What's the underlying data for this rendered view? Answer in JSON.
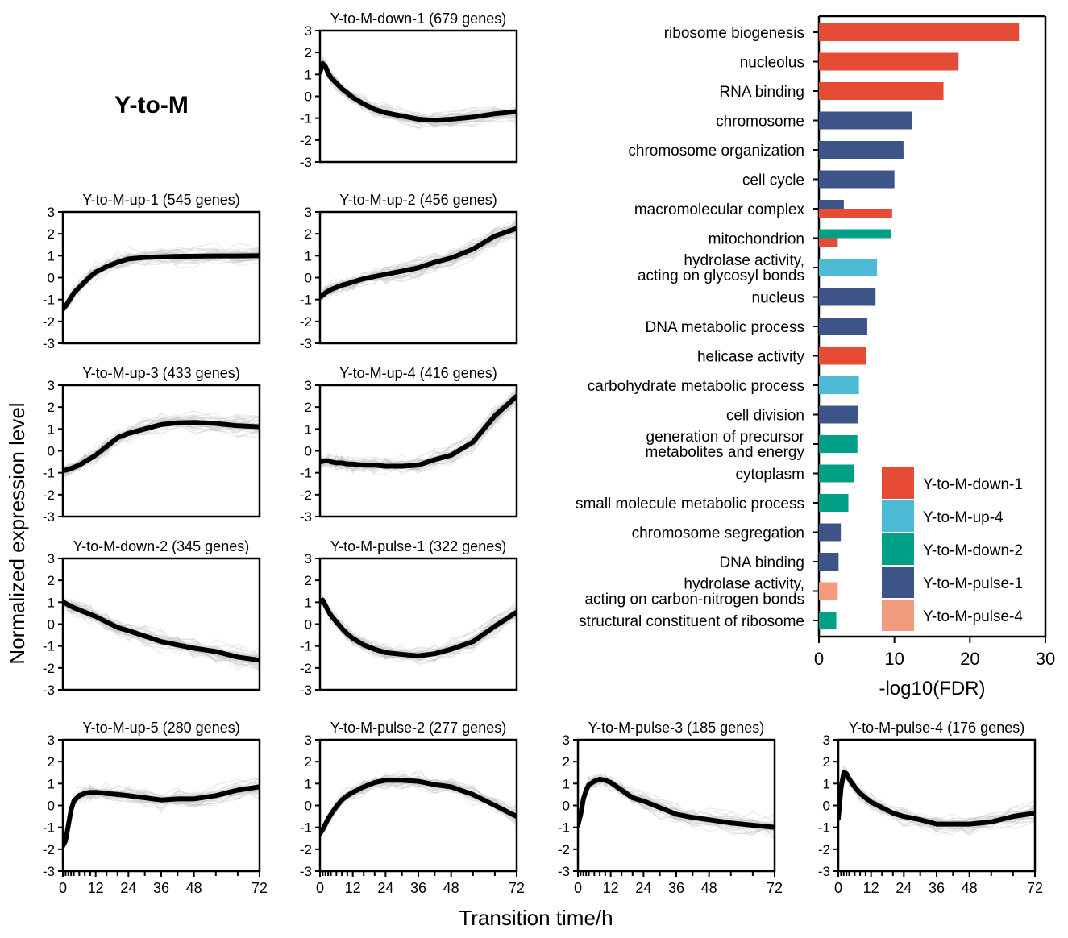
{
  "figure_title": "Y-to-M",
  "shared_axes": {
    "ylabel": "Normalized expression level",
    "xlabel": "Transition time/h",
    "y_ticks": [
      "3",
      "2",
      "1",
      "0",
      "-1",
      "-2",
      "-3"
    ],
    "x_ticks": [
      "0",
      "12",
      "24",
      "36",
      "48",
      "72"
    ]
  },
  "colors": {
    "Y-to-M-down-1": "#E64B35",
    "Y-to-M-up-4": "#4DBBD5",
    "Y-to-M-down-2": "#00A087",
    "Y-to-M-pulse-1": "#3C5488",
    "Y-to-M-pulse-4": "#F39B7F",
    "mean_line": "#000000",
    "gene_lines": "#c4c4c4"
  },
  "chart_data": [
    {
      "type": "line",
      "title": "Y-to-M-down-1 (679 genes)",
      "cluster": "Y-to-M-down-1",
      "genes": 679,
      "ylim": [
        -3,
        3
      ],
      "xlim": [
        0,
        72
      ],
      "x": [
        0,
        1,
        2,
        3,
        4,
        6,
        8,
        10,
        12,
        16,
        20,
        24,
        30,
        36,
        42,
        48,
        56,
        64,
        72
      ],
      "series": [
        {
          "name": "mean",
          "values": [
            1.1,
            1.5,
            1.35,
            1.05,
            0.85,
            0.6,
            0.35,
            0.15,
            -0.05,
            -0.35,
            -0.6,
            -0.75,
            -0.9,
            -1.05,
            -1.1,
            -1.05,
            -0.95,
            -0.8,
            -0.7
          ]
        }
      ]
    },
    {
      "type": "line",
      "title": "Y-to-M-up-1 (545 genes)",
      "cluster": "Y-to-M-up-1",
      "genes": 545,
      "ylim": [
        -3,
        3
      ],
      "xlim": [
        0,
        72
      ],
      "x": [
        0,
        1,
        2,
        3,
        4,
        6,
        8,
        10,
        12,
        16,
        20,
        24,
        30,
        36,
        42,
        48,
        56,
        64,
        72
      ],
      "series": [
        {
          "name": "mean",
          "values": [
            -1.45,
            -1.3,
            -1.1,
            -0.9,
            -0.7,
            -0.45,
            -0.2,
            0.05,
            0.25,
            0.5,
            0.7,
            0.85,
            0.92,
            0.95,
            0.97,
            0.98,
            0.99,
            0.99,
            1.0
          ]
        }
      ]
    },
    {
      "type": "line",
      "title": "Y-to-M-up-2 (456 genes)",
      "cluster": "Y-to-M-up-2",
      "genes": 456,
      "ylim": [
        -3,
        3
      ],
      "xlim": [
        0,
        72
      ],
      "x": [
        0,
        1,
        2,
        3,
        4,
        6,
        8,
        10,
        12,
        16,
        20,
        24,
        30,
        36,
        42,
        48,
        56,
        64,
        72
      ],
      "series": [
        {
          "name": "mean",
          "values": [
            -0.9,
            -0.8,
            -0.7,
            -0.62,
            -0.55,
            -0.45,
            -0.35,
            -0.28,
            -0.2,
            -0.05,
            0.05,
            0.15,
            0.3,
            0.45,
            0.7,
            0.9,
            1.3,
            1.9,
            2.25
          ]
        }
      ]
    },
    {
      "type": "line",
      "title": "Y-to-M-up-3 (433 genes)",
      "cluster": "Y-to-M-up-3",
      "genes": 433,
      "ylim": [
        -3,
        3
      ],
      "xlim": [
        0,
        72
      ],
      "x": [
        0,
        1,
        2,
        3,
        4,
        6,
        8,
        10,
        12,
        16,
        20,
        24,
        30,
        36,
        42,
        48,
        56,
        64,
        72
      ],
      "series": [
        {
          "name": "mean",
          "values": [
            -0.9,
            -0.88,
            -0.85,
            -0.8,
            -0.75,
            -0.65,
            -0.5,
            -0.35,
            -0.2,
            0.2,
            0.6,
            0.8,
            1.0,
            1.2,
            1.28,
            1.3,
            1.25,
            1.15,
            1.1
          ]
        }
      ]
    },
    {
      "type": "line",
      "title": "Y-to-M-up-4 (416 genes)",
      "cluster": "Y-to-M-up-4",
      "genes": 416,
      "ylim": [
        -3,
        3
      ],
      "xlim": [
        0,
        72
      ],
      "x": [
        0,
        1,
        2,
        3,
        4,
        6,
        8,
        10,
        12,
        16,
        20,
        24,
        30,
        36,
        42,
        48,
        56,
        64,
        72
      ],
      "series": [
        {
          "name": "mean",
          "values": [
            -0.5,
            -0.48,
            -0.45,
            -0.45,
            -0.5,
            -0.55,
            -0.55,
            -0.6,
            -0.6,
            -0.65,
            -0.65,
            -0.7,
            -0.7,
            -0.65,
            -0.4,
            -0.2,
            0.4,
            1.6,
            2.5
          ]
        }
      ]
    },
    {
      "type": "line",
      "title": "Y-to-M-down-2 (345 genes)",
      "cluster": "Y-to-M-down-2",
      "genes": 345,
      "ylim": [
        -3,
        3
      ],
      "xlim": [
        0,
        72
      ],
      "x": [
        0,
        1,
        2,
        3,
        4,
        6,
        8,
        10,
        12,
        16,
        20,
        24,
        30,
        36,
        42,
        48,
        56,
        64,
        72
      ],
      "series": [
        {
          "name": "mean",
          "values": [
            1.0,
            0.95,
            0.88,
            0.82,
            0.75,
            0.65,
            0.55,
            0.45,
            0.35,
            0.1,
            -0.15,
            -0.3,
            -0.55,
            -0.8,
            -0.95,
            -1.1,
            -1.25,
            -1.5,
            -1.65
          ]
        }
      ]
    },
    {
      "type": "line",
      "title": "Y-to-M-pulse-1 (322 genes)",
      "cluster": "Y-to-M-pulse-1",
      "genes": 322,
      "ylim": [
        -3,
        3
      ],
      "xlim": [
        0,
        72
      ],
      "x": [
        0,
        1,
        2,
        3,
        4,
        6,
        8,
        10,
        12,
        16,
        20,
        24,
        30,
        36,
        42,
        48,
        56,
        64,
        72
      ],
      "series": [
        {
          "name": "mean",
          "values": [
            1.0,
            1.1,
            0.85,
            0.6,
            0.4,
            0.1,
            -0.2,
            -0.45,
            -0.65,
            -0.95,
            -1.15,
            -1.3,
            -1.38,
            -1.45,
            -1.35,
            -1.15,
            -0.8,
            -0.1,
            0.55
          ]
        }
      ]
    },
    {
      "type": "line",
      "title": "Y-to-M-up-5 (280 genes)",
      "cluster": "Y-to-M-up-5",
      "genes": 280,
      "ylim": [
        -3,
        3
      ],
      "xlim": [
        0,
        72
      ],
      "x": [
        0,
        1,
        2,
        3,
        4,
        6,
        8,
        10,
        12,
        16,
        20,
        24,
        30,
        36,
        42,
        48,
        56,
        64,
        72
      ],
      "series": [
        {
          "name": "mean",
          "values": [
            -1.85,
            -1.6,
            -0.9,
            -0.2,
            0.2,
            0.45,
            0.55,
            0.6,
            0.6,
            0.55,
            0.5,
            0.45,
            0.35,
            0.25,
            0.3,
            0.3,
            0.45,
            0.7,
            0.85
          ]
        }
      ]
    },
    {
      "type": "line",
      "title": "Y-to-M-pulse-2 (277 genes)",
      "cluster": "Y-to-M-pulse-2",
      "genes": 277,
      "ylim": [
        -3,
        3
      ],
      "xlim": [
        0,
        72
      ],
      "x": [
        0,
        1,
        2,
        3,
        4,
        6,
        8,
        10,
        12,
        16,
        20,
        24,
        30,
        36,
        42,
        48,
        56,
        64,
        72
      ],
      "series": [
        {
          "name": "mean",
          "values": [
            -1.3,
            -1.1,
            -0.85,
            -0.6,
            -0.4,
            -0.05,
            0.25,
            0.45,
            0.6,
            0.85,
            1.05,
            1.15,
            1.15,
            1.1,
            0.95,
            0.85,
            0.5,
            0.0,
            -0.5
          ]
        }
      ]
    },
    {
      "type": "line",
      "title": "Y-to-M-pulse-3 (185 genes)",
      "cluster": "Y-to-M-pulse-3",
      "genes": 185,
      "ylim": [
        -3,
        3
      ],
      "xlim": [
        0,
        72
      ],
      "x": [
        0,
        1,
        2,
        3,
        4,
        6,
        8,
        10,
        12,
        16,
        20,
        24,
        30,
        36,
        42,
        48,
        56,
        64,
        72
      ],
      "series": [
        {
          "name": "mean",
          "values": [
            -0.9,
            -0.4,
            0.3,
            0.7,
            0.95,
            1.1,
            1.2,
            1.15,
            1.05,
            0.7,
            0.35,
            0.2,
            -0.1,
            -0.4,
            -0.55,
            -0.65,
            -0.8,
            -0.9,
            -1.0
          ]
        }
      ]
    },
    {
      "type": "line",
      "title": "Y-to-M-pulse-4 (176 genes)",
      "cluster": "Y-to-M-pulse-4",
      "genes": 176,
      "ylim": [
        -3,
        3
      ],
      "xlim": [
        0,
        72
      ],
      "x": [
        0,
        1,
        2,
        3,
        4,
        6,
        8,
        10,
        12,
        16,
        20,
        24,
        30,
        36,
        42,
        48,
        56,
        64,
        72
      ],
      "series": [
        {
          "name": "mean",
          "values": [
            -0.6,
            0.8,
            1.5,
            1.45,
            1.2,
            0.85,
            0.55,
            0.35,
            0.15,
            -0.1,
            -0.35,
            -0.5,
            -0.65,
            -0.85,
            -0.85,
            -0.85,
            -0.75,
            -0.5,
            -0.35
          ]
        }
      ]
    },
    {
      "type": "bar",
      "orientation": "horizontal",
      "xlabel": "-log10(FDR)",
      "xlim": [
        0,
        30
      ],
      "x_ticks": [
        "0",
        "10",
        "20",
        "30"
      ],
      "categories": [
        "ribosome biogenesis",
        "nucleolus",
        "RNA binding",
        "chromosome",
        "chromosome organization",
        "cell cycle",
        "macromolecular complex",
        "mitochondrion",
        "hydrolase activity,|acting on glycosyl bonds",
        "nucleus",
        "DNA metabolic process",
        "helicase activity",
        "carbohydrate metabolic process",
        "cell division",
        "generation of precursor|metabolites and energy",
        "cytoplasm",
        "small molecule metabolic process",
        "chromosome segregation",
        "DNA binding",
        "hydrolase activity,|acting on carbon-nitrogen bonds",
        "structural constituent of ribosome"
      ],
      "bars": [
        [
          {
            "cluster": "Y-to-M-down-1",
            "value": 26.5
          }
        ],
        [
          {
            "cluster": "Y-to-M-down-1",
            "value": 18.5
          }
        ],
        [
          {
            "cluster": "Y-to-M-down-1",
            "value": 16.5
          }
        ],
        [
          {
            "cluster": "Y-to-M-pulse-1",
            "value": 12.3
          }
        ],
        [
          {
            "cluster": "Y-to-M-pulse-1",
            "value": 11.2
          }
        ],
        [
          {
            "cluster": "Y-to-M-pulse-1",
            "value": 10.0
          }
        ],
        [
          {
            "cluster": "Y-to-M-pulse-1",
            "value": 3.3
          },
          {
            "cluster": "Y-to-M-down-1",
            "value": 9.7
          }
        ],
        [
          {
            "cluster": "Y-to-M-down-2",
            "value": 9.6
          },
          {
            "cluster": "Y-to-M-down-1",
            "value": 2.5
          }
        ],
        [
          {
            "cluster": "Y-to-M-up-4",
            "value": 7.7
          }
        ],
        [
          {
            "cluster": "Y-to-M-pulse-1",
            "value": 7.5
          }
        ],
        [
          {
            "cluster": "Y-to-M-pulse-1",
            "value": 6.4
          }
        ],
        [
          {
            "cluster": "Y-to-M-down-1",
            "value": 6.3
          }
        ],
        [
          {
            "cluster": "Y-to-M-up-4",
            "value": 5.3
          }
        ],
        [
          {
            "cluster": "Y-to-M-pulse-1",
            "value": 5.2
          }
        ],
        [
          {
            "cluster": "Y-to-M-down-2",
            "value": 5.1
          }
        ],
        [
          {
            "cluster": "Y-to-M-down-2",
            "value": 4.6
          }
        ],
        [
          {
            "cluster": "Y-to-M-down-2",
            "value": 3.9
          }
        ],
        [
          {
            "cluster": "Y-to-M-pulse-1",
            "value": 2.9
          }
        ],
        [
          {
            "cluster": "Y-to-M-pulse-1",
            "value": 2.6
          }
        ],
        [
          {
            "cluster": "Y-to-M-pulse-4",
            "value": 2.5
          }
        ],
        [
          {
            "cluster": "Y-to-M-down-2",
            "value": 2.3
          }
        ]
      ],
      "legend": [
        "Y-to-M-down-1",
        "Y-to-M-up-4",
        "Y-to-M-down-2",
        "Y-to-M-pulse-1",
        "Y-to-M-pulse-4"
      ],
      "legend_position": "bottom-right"
    }
  ]
}
